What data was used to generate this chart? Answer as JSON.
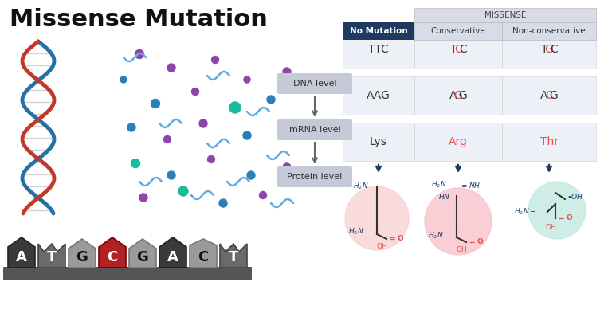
{
  "title": "Missense Mutation",
  "title_fontsize": 22,
  "title_color": "#111111",
  "bg_color": "#ffffff",
  "table_header_missense": "MISSENSE",
  "table_col0_header": "No Mutation",
  "table_col1_header": "Conservative",
  "table_col2_header": "Non-conservative",
  "col0_header_bg": "#1e3a5f",
  "col0_header_fg": "#ffffff",
  "col12_header_bg": "#d8dce8",
  "col12_header_fg": "#333333",
  "missense_header_bg": "#d8dce8",
  "cell_bg": "#eef0f8",
  "row_labels": [
    "DNA level",
    "mRNA level",
    "Protein level"
  ],
  "row_label_bg": "#c5c9d8",
  "col0_values": [
    "TTC",
    "AAG",
    "Lys"
  ],
  "col1_values_parts": [
    [
      "T",
      "C",
      "C"
    ],
    [
      "A",
      "G",
      "G"
    ],
    [
      "Arg"
    ]
  ],
  "col2_values_parts": [
    [
      "T",
      "G",
      "C"
    ],
    [
      "A",
      "C",
      "G"
    ],
    [
      "Thr"
    ]
  ],
  "mutation_color": "#e05050",
  "normal_text_color": "#333333",
  "strand1_color": "#c0392b",
  "strand2_color": "#2471a3",
  "dot_colors": [
    "#8e44ad",
    "#2980b9",
    "#1abc9c",
    "#5b2d8e",
    "#1a6fa0"
  ],
  "squiggle_color": "#5dade2",
  "nuc_letters": [
    "A",
    "T",
    "G",
    "C",
    "G",
    "A",
    "C",
    "T"
  ],
  "nuc_highlight_idx": 3,
  "nuc_highlight_color": "#b22222",
  "nuc_dark_bg": "#3a3a3a",
  "nuc_mid_bg": "#6a6a6a",
  "nuc_light_bg": "#9a9a9a",
  "platform_color": "#555555",
  "lysine_circle_color": "#f8d0d0",
  "arginine_circle_color": "#f8c0c8",
  "threonine_circle_color": "#c0e8e0",
  "arrow_color": "#1e3a5f",
  "bond_color": "#333333",
  "blue_label_color": "#1a3a6b",
  "red_label_color": "#e05050"
}
